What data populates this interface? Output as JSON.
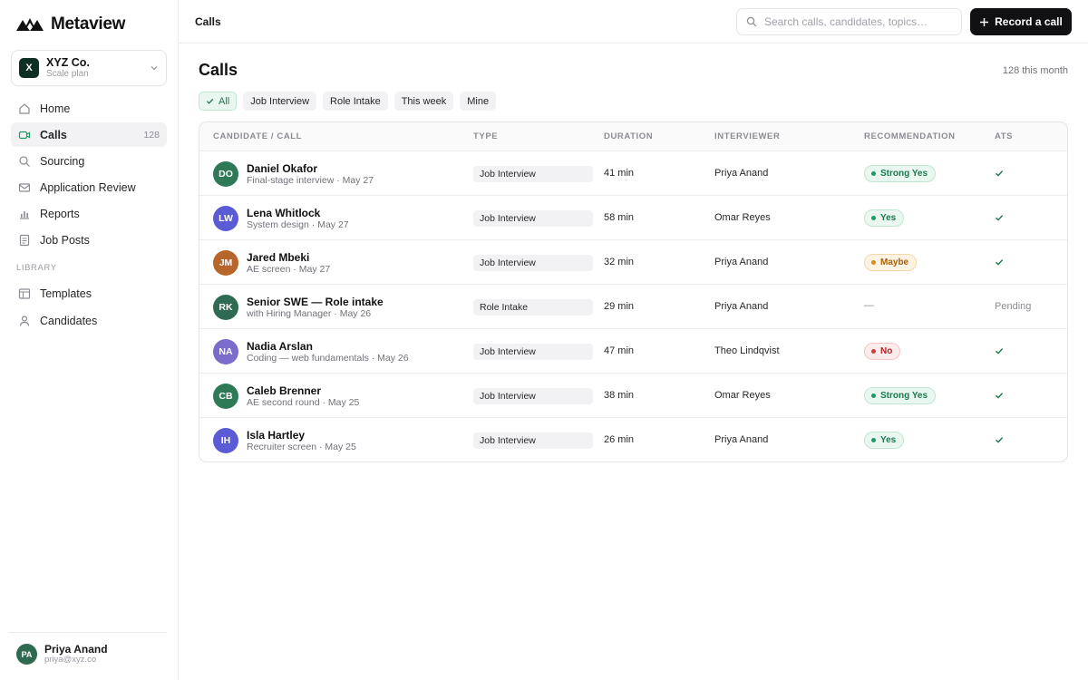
{
  "brand": {
    "name": "Metaview"
  },
  "org": {
    "initial": "X",
    "name": "XYZ Co.",
    "plan": "Scale plan"
  },
  "nav": {
    "items": [
      {
        "label": "Home",
        "icon": "home-icon"
      },
      {
        "label": "Calls",
        "icon": "video-icon",
        "count": "128",
        "active": true
      },
      {
        "label": "Sourcing",
        "icon": "search-icon"
      },
      {
        "label": "Application Review",
        "icon": "mail-icon"
      },
      {
        "label": "Reports",
        "icon": "bar-chart-icon"
      },
      {
        "label": "Job Posts",
        "icon": "document-icon"
      }
    ],
    "section_label": "LIBRARY",
    "library_items": [
      {
        "label": "Templates",
        "icon": "template-icon"
      },
      {
        "label": "Candidates",
        "icon": "person-icon"
      }
    ]
  },
  "user": {
    "initials": "PA",
    "name": "Priya Anand",
    "email": "priya@xyz.co"
  },
  "topbar": {
    "breadcrumb": "Calls",
    "search_placeholder": "Search calls, candidates, topics…",
    "record_label": "Record a call"
  },
  "page": {
    "title": "Calls",
    "month_count": "128 this month"
  },
  "filters": [
    {
      "label": "All",
      "active": true
    },
    {
      "label": "Job Interview"
    },
    {
      "label": "Role Intake"
    },
    {
      "label": "This week"
    },
    {
      "label": "Mine"
    }
  ],
  "table": {
    "headers": {
      "candidate": "CANDIDATE / CALL",
      "type": "TYPE",
      "duration": "DURATION",
      "interviewer": "INTERVIEWER",
      "recommendation": "RECOMMENDATION",
      "ats": "ATS"
    },
    "rows": [
      {
        "initials": "DO",
        "avatar_color": "#2e7a57",
        "name": "Daniel Okafor",
        "sub": "Final-stage interview · May 27",
        "type": "Job Interview",
        "duration": "41 min",
        "interviewer": "Priya Anand",
        "recommendation": "Strong Yes",
        "rec_kind": "strong",
        "ats_status": "check"
      },
      {
        "initials": "LW",
        "avatar_color": "#5b5bd6",
        "name": "Lena Whitlock",
        "sub": "System design · May 27",
        "type": "Job Interview",
        "duration": "58 min",
        "interviewer": "Omar Reyes",
        "recommendation": "Yes",
        "rec_kind": "yes",
        "ats_status": "check"
      },
      {
        "initials": "JM",
        "avatar_color": "#b8652b",
        "name": "Jared Mbeki",
        "sub": "AE screen · May 27",
        "type": "Job Interview",
        "duration": "32 min",
        "interviewer": "Priya Anand",
        "recommendation": "Maybe",
        "rec_kind": "maybe",
        "ats_status": "check"
      },
      {
        "initials": "RK",
        "avatar_color": "#2f6a52",
        "name": "Senior SWE — Role intake",
        "sub": "with Hiring Manager · May 26",
        "type": "Role Intake",
        "duration": "29 min",
        "interviewer": "Priya Anand",
        "recommendation": "—",
        "rec_kind": "none",
        "ats_status": "Pending"
      },
      {
        "initials": "NA",
        "avatar_color": "#7b6ccb",
        "name": "Nadia Arslan",
        "sub": "Coding — web fundamentals · May 26",
        "type": "Job Interview",
        "duration": "47 min",
        "interviewer": "Theo Lindqvist",
        "recommendation": "No",
        "rec_kind": "no",
        "ats_status": "check"
      },
      {
        "initials": "CB",
        "avatar_color": "#2e7a57",
        "name": "Caleb Brenner",
        "sub": "AE second round · May 25",
        "type": "Job Interview",
        "duration": "38 min",
        "interviewer": "Omar Reyes",
        "recommendation": "Strong Yes",
        "rec_kind": "strong",
        "ats_status": "check"
      },
      {
        "initials": "IH",
        "avatar_color": "#5b5bd6",
        "name": "Isla Hartley",
        "sub": "Recruiter screen · May 25",
        "type": "Job Interview",
        "duration": "26 min",
        "interviewer": "Priya Anand",
        "recommendation": "Yes",
        "rec_kind": "yes",
        "ats_status": "check"
      }
    ]
  },
  "colors": {
    "accent": "#1e9a62",
    "primary_button": "#111113"
  }
}
